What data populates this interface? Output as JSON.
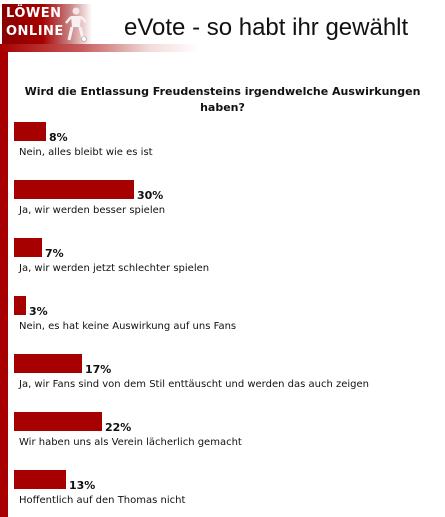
{
  "header": {
    "logo_line1": "LÖWEN",
    "logo_line2": "ONLINE",
    "title": "eVote - so habt ihr gewählt"
  },
  "colors": {
    "accent": "#a60000",
    "text": "#111111"
  },
  "chart_data": {
    "type": "bar",
    "title": "Wird die Entlassung Freudensteins irgendwelche Auswirkungen haben?",
    "categories": [
      "Nein, alles bleibt wie es ist",
      "Ja, wir werden besser spielen",
      "Ja, wir werden jetzt schlechter spielen",
      "Nein, es hat keine Auswirkung auf uns Fans",
      "Ja, wir Fans sind von dem Stil enttäuscht und werden das auch zeigen",
      "Wir haben uns als Verein lächerlich gemacht",
      "Hoffentlich auf den Thomas nicht"
    ],
    "values": [
      8,
      30,
      7,
      3,
      17,
      22,
      13
    ],
    "value_labels": [
      "8%",
      "30%",
      "7%",
      "3%",
      "17%",
      "22%",
      "13%"
    ],
    "unit": "%",
    "orientation": "horizontal",
    "grid": false
  }
}
